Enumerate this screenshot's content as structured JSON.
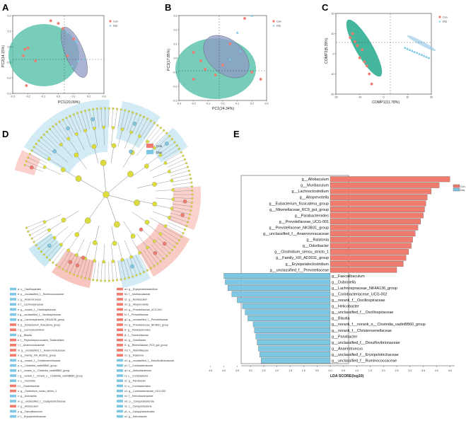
{
  "panels": {
    "A": "A",
    "B": "B",
    "C": "C",
    "D": "D",
    "E": "E"
  },
  "colors": {
    "con": "#f07c6f",
    "dss": "#7ec7e2",
    "ellipse_con": "#5fc3ae",
    "ellipse_dss": "#8f9bc4",
    "node": "#dcdc3c"
  },
  "legend": {
    "con": "Con",
    "dss": "Dss"
  },
  "chart_data": [
    {
      "panel": "A",
      "type": "scatter",
      "xlabel": "PC1(20.09%)",
      "ylabel": "PC2(14.15%)",
      "xlim": [
        -0.3,
        0.3
      ],
      "ylim": [
        -0.35,
        0.25
      ],
      "xticks": [
        "-0.3",
        "-0.2",
        "-0.1",
        "0.0",
        "0.1",
        "0.2",
        "0.3"
      ],
      "yticks": [
        "0.2",
        "0.1",
        "0.0",
        "-0.1",
        "-0.2",
        "-0.3"
      ],
      "series": [
        {
          "name": "Con",
          "points": [
            [
              -0.05,
              0.21
            ],
            [
              -0.2,
              0.0
            ],
            [
              -0.22,
              -0.01
            ],
            [
              -0.23,
              -0.06
            ],
            [
              -0.15,
              -0.1
            ],
            [
              0.0,
              0.19
            ],
            [
              0.03,
              0.15
            ],
            [
              0.1,
              0.07
            ],
            [
              0.06,
              -0.06
            ],
            [
              -0.21,
              -0.29
            ]
          ]
        },
        {
          "name": "Dss",
          "points": [
            [
              0.06,
              0.12
            ],
            [
              0.12,
              0.05
            ],
            [
              0.17,
              -0.09
            ],
            [
              0.13,
              -0.1
            ],
            [
              0.09,
              -0.14
            ]
          ]
        }
      ]
    },
    {
      "panel": "B",
      "type": "scatter",
      "xlabel": "PC1(24.34%)",
      "ylabel": "PC2(17.85%)",
      "xlim": [
        -0.3,
        0.3
      ],
      "ylim": [
        -0.3,
        0.3
      ],
      "xticks": [
        "-0.3",
        "-0.2",
        "-0.1",
        "0.0",
        "0.1",
        "0.2",
        "0.3"
      ],
      "yticks": [
        "0.3",
        "0.2",
        "0.1",
        "0.0",
        "-0.1",
        "-0.2",
        "-0.3"
      ],
      "series": [
        {
          "name": "Con",
          "points": [
            [
              0.15,
              0.28
            ],
            [
              -0.2,
              0.04
            ],
            [
              -0.15,
              -0.02
            ],
            [
              -0.12,
              -0.08
            ],
            [
              -0.2,
              -0.15
            ],
            [
              0.05,
              0.1
            ],
            [
              0.0,
              -0.05
            ],
            [
              -0.05,
              -0.12
            ],
            [
              0.2,
              -0.1
            ],
            [
              0.26,
              -0.15
            ]
          ]
        },
        {
          "name": "Dss",
          "points": [
            [
              0.2,
              0.3
            ],
            [
              0.1,
              0.18
            ],
            [
              0.12,
              0.05
            ],
            [
              0.05,
              -0.01
            ],
            [
              0.19,
              -0.06
            ]
          ]
        }
      ]
    },
    {
      "panel": "C",
      "type": "scatter",
      "xlabel": "COMP1(11.78%)",
      "ylabel": "COMP2(8.39%)",
      "xlim": [
        -20,
        20
      ],
      "ylim": [
        -20,
        20
      ],
      "xticks": [
        "-20",
        "-10",
        "0",
        "10",
        "20"
      ],
      "yticks": [
        "20",
        "10",
        "0",
        "-10",
        "-20"
      ],
      "series": [
        {
          "name": "Con",
          "points": [
            [
              -14,
              8
            ],
            [
              -13,
              10
            ],
            [
              -11,
              4
            ],
            [
              -9,
              2
            ],
            [
              -10,
              -2
            ],
            [
              -8,
              -4
            ],
            [
              -7,
              -6
            ],
            [
              -6,
              -10
            ],
            [
              -5,
              -15
            ],
            [
              -12,
              6
            ]
          ]
        },
        {
          "name": "Dss",
          "points": [
            [
              9,
              3
            ],
            [
              10,
              2.5
            ],
            [
              11,
              2
            ],
            [
              12,
              1.5
            ],
            [
              13,
              1
            ],
            [
              14,
              0.5
            ],
            [
              15,
              0
            ],
            [
              16,
              -0.5
            ],
            [
              17,
              -1
            ],
            [
              18,
              -1.5
            ],
            [
              19,
              -2
            ]
          ]
        }
      ]
    },
    {
      "panel": "E",
      "type": "bar",
      "orientation": "horizontal",
      "xlabel": "LDA SCORE(log10)",
      "xticks": [
        "4.5",
        "4.0",
        "3.5",
        "3.0",
        "2.5",
        "2.0",
        "1.5",
        "1.0",
        "0.5",
        "0.0",
        "0.5",
        "1.0",
        "1.5",
        "2.0",
        "2.5",
        "3.0",
        "3.5",
        "4.0",
        "4.5"
      ],
      "series": [
        {
          "name": "Con",
          "items": [
            {
              "label": "g__Allobaculum",
              "value": 4.5
            },
            {
              "label": "g__Muribaculum",
              "value": 4.1
            },
            {
              "label": "g__Lachnoclostridium",
              "value": 3.8
            },
            {
              "label": "g__Alloprevotella",
              "value": 3.65
            },
            {
              "label": "g__Eubacterium_fissicatena_group",
              "value": 3.6
            },
            {
              "label": "g__Rikenellaceae_RC9_gut_group",
              "value": 3.55
            },
            {
              "label": "g__Parabacteroides",
              "value": 3.5
            },
            {
              "label": "g__Prevotellaceae_UCG-001",
              "value": 3.4
            },
            {
              "label": "g__Prevotellaceae_NK3B31_group",
              "value": 3.3
            },
            {
              "label": "g__unclassified_f__Anaerovoracaceae",
              "value": 3.2
            },
            {
              "label": "g__Ralstonia",
              "value": 3.1
            },
            {
              "label": "g__Odoribacter",
              "value": 3.05
            },
            {
              "label": "g__Clostridium_sensu_stricto_1",
              "value": 2.95
            },
            {
              "label": "g__Family_XIII_AD3011_group",
              "value": 2.85
            },
            {
              "label": "g__Erysipelatoclostridium",
              "value": 2.75
            },
            {
              "label": "g__unclassified_f__Prevotellaceae",
              "value": 2.5
            }
          ]
        },
        {
          "name": "Dss",
          "items": [
            {
              "label": "g__Faecalibaculum",
              "value": 4.0
            },
            {
              "label": "g__Dubosiella",
              "value": 3.95
            },
            {
              "label": "g__Lachnospiraceae_NK4A136_group",
              "value": 3.85
            },
            {
              "label": "g__Coriobacteriaceae_UCG-002",
              "value": 3.7
            },
            {
              "label": "g__norank_f__Oscillospiraceae",
              "value": 3.5
            },
            {
              "label": "g__Helicobacter",
              "value": 3.3
            },
            {
              "label": "g__unclassified_f__Oscillospiraceae",
              "value": 3.2
            },
            {
              "label": "g__Blautia",
              "value": 3.1
            },
            {
              "label": "g__norank_f__norank_o__Clostridia_vadinBB60_group",
              "value": 2.9
            },
            {
              "label": "g__norank_f__Christensenellaceae",
              "value": 2.85
            },
            {
              "label": "g__Parvibacter",
              "value": 2.8
            },
            {
              "label": "g__unclassified_f__Desulfovibrionaceae",
              "value": 2.75
            },
            {
              "label": "g__Anaerotruncus",
              "value": 2.7
            },
            {
              "label": "g__unclassified_f__Erysipelotrichaceae",
              "value": 2.65
            },
            {
              "label": "g__unclassified_f__Ruminococcaceae",
              "value": 2.6
            }
          ]
        }
      ]
    }
  ],
  "cladogram": {
    "legend_left": [
      {
        "key": "a",
        "text": "o__Oscillospirales",
        "group": "dss"
      },
      {
        "key": "b",
        "text": "p__unclassified_f__Ruminococcaceae",
        "group": "dss"
      },
      {
        "key": "c",
        "text": "g__Anaerotruncus",
        "group": "dss"
      },
      {
        "key": "d",
        "text": "f__Lachnospiraceae",
        "group": "dss"
      },
      {
        "key": "e",
        "text": "g__norank_f__Oscillospiraceae",
        "group": "dss"
      },
      {
        "key": "f",
        "text": "g__unclassified_f__Oscillospiraceae",
        "group": "dss"
      },
      {
        "key": "g",
        "text": "g__Lachnospiraceae_NK4A136_group",
        "group": "dss"
      },
      {
        "key": "h",
        "text": "g__Eubacterium_fissicatena_group",
        "group": "con"
      },
      {
        "key": "i",
        "text": "g__Lachnoclostridium",
        "group": "con"
      },
      {
        "key": "j",
        "text": "g__Blautia",
        "group": "dss"
      },
      {
        "key": "k",
        "text": "f__Peptostreptococcales_Tissierellales",
        "group": "con"
      },
      {
        "key": "l",
        "text": "f__Anaerovoracaceae",
        "group": "con"
      },
      {
        "key": "m",
        "text": "g__unclassified_f__Anaerovoracaceae",
        "group": "con"
      },
      {
        "key": "n",
        "text": "g__Family_XIII_AD3011_group",
        "group": "con"
      },
      {
        "key": "o",
        "text": "g__norank_f__Christensenellaceae",
        "group": "dss"
      },
      {
        "key": "p",
        "text": "o__Clostridia_vadinBB60_group",
        "group": "dss"
      },
      {
        "key": "q",
        "text": "f__norank_o__Clostridia_vadinBB60_group",
        "group": "dss"
      },
      {
        "key": "r",
        "text": "g__norank_f__norank_o__Clostridia_vadinBB60_group",
        "group": "dss"
      },
      {
        "key": "s",
        "text": "c__Clostridia",
        "group": "dss"
      },
      {
        "key": "t",
        "text": "f__Clostridiaceae",
        "group": "con"
      },
      {
        "key": "u",
        "text": "g__Clostridium_sensu_stricto_1",
        "group": "con"
      },
      {
        "key": "v",
        "text": "g__Dubosiella",
        "group": "dss"
      },
      {
        "key": "w",
        "text": "g__unclassified_f__Erysipelotrichaceae",
        "group": "dss"
      },
      {
        "key": "x",
        "text": "g__Allobaculum",
        "group": "con"
      },
      {
        "key": "y",
        "text": "g__Faecalibaculum",
        "group": "dss"
      },
      {
        "key": "z",
        "text": "f__Erysipelotrichaceae",
        "group": "dss"
      }
    ],
    "legend_right": [
      {
        "key": "a1",
        "text": "g__Erysipelatoclostridium",
        "group": "con"
      },
      {
        "key": "b1",
        "text": "f__Muribaculaceae",
        "group": "con"
      },
      {
        "key": "c1",
        "text": "g__Muribaculum",
        "group": "con"
      },
      {
        "key": "d1",
        "text": "g__Alloprevotella",
        "group": "con"
      },
      {
        "key": "e1",
        "text": "g__Prevotellaceae_UCG-001",
        "group": "con"
      },
      {
        "key": "f1",
        "text": "f__Prevotellaceae",
        "group": "con"
      },
      {
        "key": "g1",
        "text": "g__unclassified_f__Prevotellaceae",
        "group": "con"
      },
      {
        "key": "h1",
        "text": "g__Prevotellaceae_NK3B31_group",
        "group": "con"
      },
      {
        "key": "i1",
        "text": "g__Parabacteroides",
        "group": "con"
      },
      {
        "key": "j1",
        "text": "f__Tannerellaceae",
        "group": "con"
      },
      {
        "key": "k1",
        "text": "g__Odoribacter",
        "group": "con"
      },
      {
        "key": "l1",
        "text": "g__Rikenellaceae_RC9_gut_group",
        "group": "con"
      },
      {
        "key": "m1",
        "text": "f__Marinifilaceae",
        "group": "con"
      },
      {
        "key": "n1",
        "text": "g__Ralstonia",
        "group": "con"
      },
      {
        "key": "o1",
        "text": "g__unclassified_f__Desulfovibrionaceae",
        "group": "dss"
      },
      {
        "key": "p1",
        "text": "f__Coriobacteriaceae",
        "group": "dss"
      },
      {
        "key": "q1",
        "text": "p__Actinobacteriota",
        "group": "dss"
      },
      {
        "key": "r1",
        "text": "c__Coriobacteriia",
        "group": "dss"
      },
      {
        "key": "s1",
        "text": "g__Parvibacter",
        "group": "dss"
      },
      {
        "key": "t1",
        "text": "o__Coriobacteriales",
        "group": "dss"
      },
      {
        "key": "u1",
        "text": "g__Coriobacteriaceae_UCG-002",
        "group": "dss"
      },
      {
        "key": "v1",
        "text": "f__Helicobacteraceae",
        "group": "dss"
      },
      {
        "key": "w1",
        "text": "p__Campylobacterota",
        "group": "dss"
      },
      {
        "key": "x1",
        "text": "c__Campylobacteria",
        "group": "dss"
      },
      {
        "key": "y1",
        "text": "o__Campylobacterales",
        "group": "dss"
      },
      {
        "key": "z1",
        "text": "g__Helicobacter",
        "group": "dss"
      }
    ]
  }
}
